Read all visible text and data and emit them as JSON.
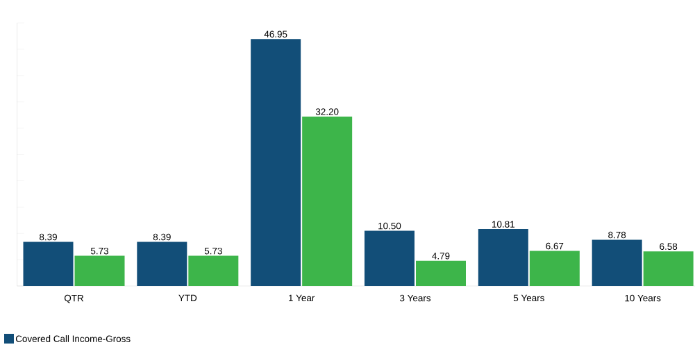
{
  "chart_data": {
    "type": "bar",
    "categories": [
      "QTR",
      "YTD",
      "1 Year",
      "3 Years",
      "5 Years",
      "10 Years"
    ],
    "series": [
      {
        "name": "Covered Call Income-Gross",
        "color": "#124e78",
        "values": [
          8.39,
          8.39,
          46.95,
          10.5,
          10.81,
          8.78
        ],
        "value_labels": [
          "8.39",
          "8.39",
          "46.95",
          "10.50",
          "10.81",
          "8.78"
        ]
      },
      {
        "color": "#3db54a",
        "values": [
          5.73,
          5.73,
          32.2,
          4.79,
          6.67,
          6.58
        ],
        "value_labels": [
          "5.73",
          "5.73",
          "32.20",
          "4.79",
          "6.67",
          "6.58"
        ]
      }
    ],
    "ylim": [
      0,
      50
    ],
    "yticks": [
      {
        "value": 0,
        "label": null
      },
      {
        "value": 5,
        "label": null
      },
      {
        "value": 10,
        "label": null
      },
      {
        "value": 15,
        "label": null
      },
      {
        "value": 20,
        "label": null
      },
      {
        "value": 25,
        "label": null
      },
      {
        "value": 30,
        "label": null
      },
      {
        "value": 35,
        "label": null
      },
      {
        "value": 40,
        "label": null
      },
      {
        "value": 45,
        "label": null
      },
      {
        "value": 50,
        "label": null
      }
    ],
    "tick_labels": "x",
    "grid": false,
    "legend": "bottom"
  }
}
